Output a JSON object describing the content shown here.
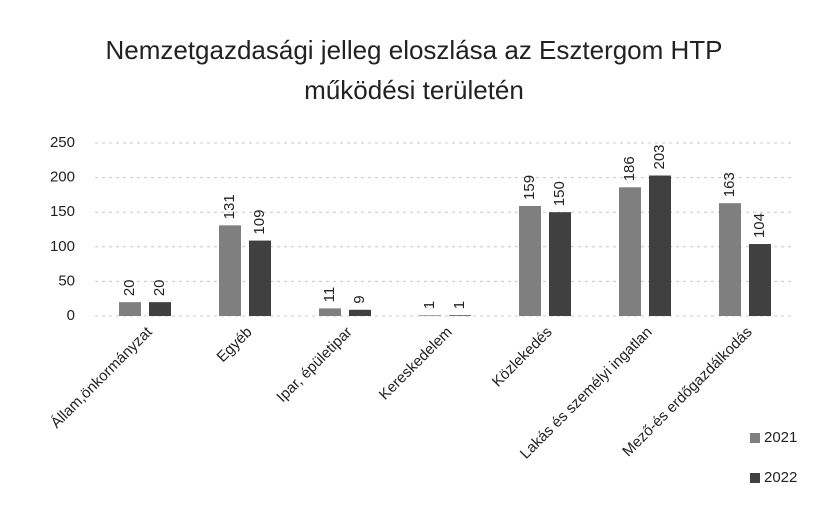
{
  "chart_data": {
    "type": "bar",
    "title": "Nemzetgazdasági jelleg eloszlása az Esztergom HTP működési területén",
    "categories": [
      "Állam,önkormányzat",
      "Egyéb",
      "Ipar, épületipar",
      "Kereskedelem",
      "Közlekedés",
      "Lakás és személyi ingatlan",
      "Mező-és erdőgazdálkodás"
    ],
    "series": [
      {
        "name": "2021",
        "color": "#7f7f7f",
        "values": [
          20,
          131,
          11,
          1,
          159,
          186,
          163
        ]
      },
      {
        "name": "2022",
        "color": "#404040",
        "values": [
          20,
          109,
          9,
          1,
          150,
          203,
          104
        ]
      }
    ],
    "ylim": [
      0,
      250
    ],
    "yticks": [
      0,
      50,
      100,
      150,
      200,
      250
    ],
    "grid": true,
    "legend": "bottom-right"
  }
}
